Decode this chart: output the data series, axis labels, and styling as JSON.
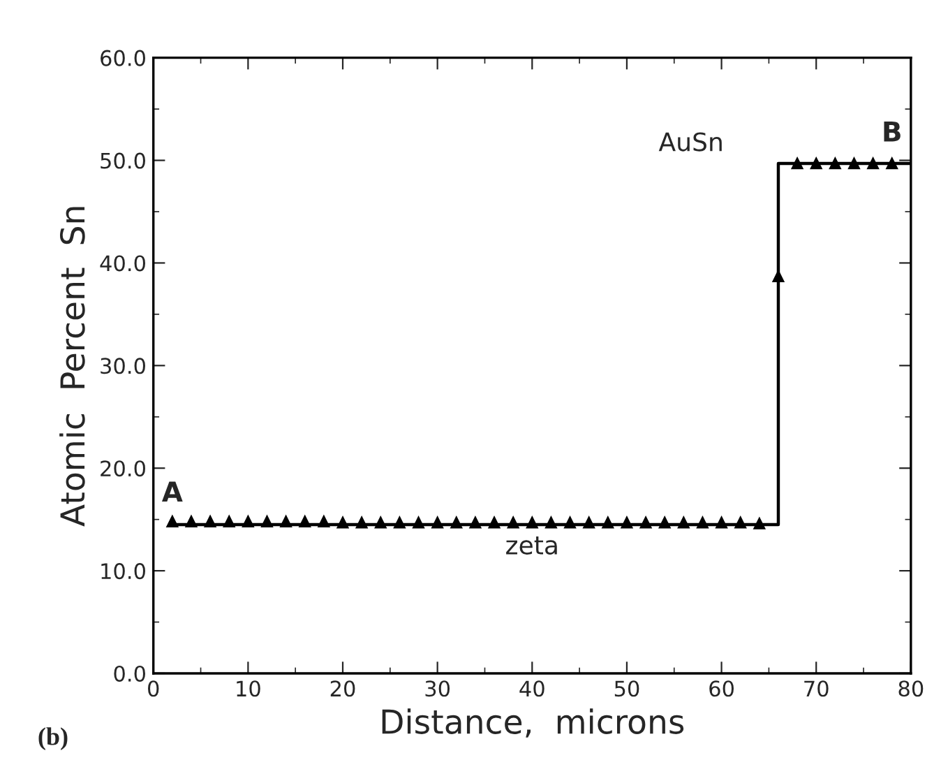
{
  "chart_data": {
    "type": "scatter",
    "xlabel": "Distance,  microns",
    "ylabel": "Atomic  Percent  Sn",
    "xlim": [
      0,
      80
    ],
    "xticks": [
      0,
      10,
      20,
      30,
      40,
      50,
      60,
      70,
      80
    ],
    "ylim": [
      0,
      60
    ],
    "yticks": [
      {
        "value": 0,
        "label": "0.0"
      },
      {
        "value": 10,
        "label": "10.0"
      },
      {
        "value": 20,
        "label": "20.0"
      },
      {
        "value": 30,
        "label": "30.0"
      },
      {
        "value": 40,
        "label": "40.0"
      },
      {
        "value": 50,
        "label": "50.0"
      },
      {
        "value": 60,
        "label": "60.0"
      }
    ],
    "grid": false,
    "legend": false,
    "series": [
      {
        "type": "line",
        "marker": "none",
        "color": "#000000",
        "x": [
          2,
          66,
          66,
          80
        ],
        "values": [
          14.5,
          14.5,
          49.7,
          49.7
        ]
      },
      {
        "marker": "triangle",
        "color": "#000000",
        "x": [
          2,
          4,
          6,
          8,
          10,
          12,
          14,
          16,
          18,
          20,
          22,
          24,
          26,
          28,
          30,
          32,
          34,
          36,
          38,
          40,
          42,
          44,
          46,
          48,
          50,
          52,
          54,
          56,
          58,
          60,
          62,
          64,
          66,
          68,
          70,
          72,
          74,
          76,
          78
        ],
        "values": [
          14.8,
          14.8,
          14.8,
          14.8,
          14.8,
          14.8,
          14.8,
          14.8,
          14.8,
          14.7,
          14.7,
          14.7,
          14.7,
          14.7,
          14.7,
          14.7,
          14.7,
          14.7,
          14.7,
          14.7,
          14.7,
          14.7,
          14.7,
          14.7,
          14.7,
          14.7,
          14.7,
          14.7,
          14.7,
          14.7,
          14.7,
          14.6,
          38.7,
          49.7,
          49.7,
          49.7,
          49.7,
          49.7,
          49.7
        ]
      }
    ],
    "annotations": [
      "A",
      "B",
      "AuSn",
      "zeta",
      "(b)"
    ]
  }
}
